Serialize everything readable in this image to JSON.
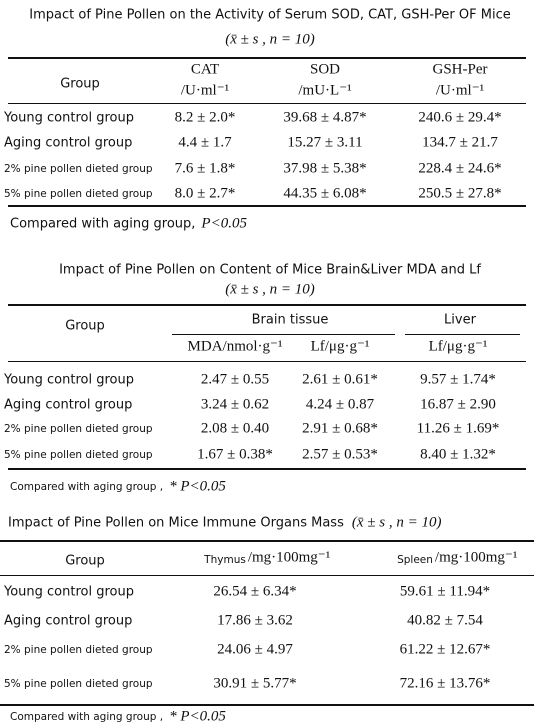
{
  "tables": [
    {
      "title": "Impact of Pine Pollen on the Activity of Serum SOD, CAT, GSH-Per OF Mice",
      "subtitle": "(x̄ ± s , n = 10)",
      "group_header": "Group",
      "columns": [
        {
          "name": "CAT",
          "unit": "/U·ml⁻¹"
        },
        {
          "name": "SOD",
          "unit": "/mU·L⁻¹"
        },
        {
          "name": "GSH-Per",
          "unit": "/U·ml⁻¹"
        }
      ],
      "rows": [
        [
          "Young control group",
          "8.2 ± 2.0*",
          "39.68 ± 4.87*",
          "240.6 ± 29.4*"
        ],
        [
          "Aging control group",
          "4.4 ± 1.7",
          "15.27 ± 3.11",
          "134.7 ± 21.7"
        ],
        [
          "2% pine pollen dieted group",
          "7.6 ± 1.8*",
          "37.98 ± 5.38*",
          "228.4 ± 24.6*"
        ],
        [
          "5% pine pollen dieted group",
          "8.0 ± 2.7*",
          "44.35 ± 6.08*",
          "250.5 ± 27.8*"
        ]
      ],
      "note": {
        "text": "Compared with aging group,",
        "significance": "P<0.05"
      }
    },
    {
      "title": "Impact of Pine Pollen on Content of Mice Brain&Liver MDA and Lf",
      "subtitle": "(x̄ ± s , n = 10)",
      "group_header": "Group",
      "column_groups": [
        "Brain tissue",
        "Liver"
      ],
      "columns": [
        "MDA/nmol·g⁻¹",
        "Lf/μg·g⁻¹",
        "Lf/μg·g⁻¹"
      ],
      "rows": [
        [
          "Young control group",
          "2.47 ± 0.55",
          "2.61 ± 0.61*",
          "9.57 ± 1.74*"
        ],
        [
          "Aging control group",
          "3.24 ± 0.62",
          "4.24 ± 0.87",
          "16.87 ± 2.90"
        ],
        [
          "2% pine pollen dieted group",
          "2.08 ± 0.40",
          "2.91 ± 0.68*",
          "11.26 ± 1.69*"
        ],
        [
          "5% pine pollen dieted group",
          "1.67 ± 0.38*",
          "2.57 ± 0.53*",
          "8.40 ± 1.32*"
        ]
      ],
      "note": {
        "text": "Compared with aging group ,",
        "significance": "* P<0.05"
      }
    },
    {
      "title": "Impact of Pine Pollen on Mice Immune Organs Mass",
      "subtitle": "(x̄ ± s , n = 10)",
      "group_header": "Group",
      "columns": [
        {
          "name": "Thymus",
          "unit": "/mg·100mg⁻¹"
        },
        {
          "name": "Spleen",
          "unit": "/mg·100mg⁻¹"
        }
      ],
      "rows": [
        [
          "Young control group",
          "26.54 ± 6.34*",
          "59.61 ± 11.94*"
        ],
        [
          "Aging control group",
          "17.86 ± 3.62",
          "40.82 ± 7.54"
        ],
        [
          "2% pine pollen dieted group",
          "24.06 ± 4.97",
          "61.22 ± 12.67*"
        ],
        [
          "5% pine pollen dieted group",
          "30.91 ± 5.77*",
          "72.16 ± 13.76*"
        ]
      ],
      "note": {
        "text": "Compared with aging group ,",
        "significance": "* P<0.05"
      }
    }
  ]
}
